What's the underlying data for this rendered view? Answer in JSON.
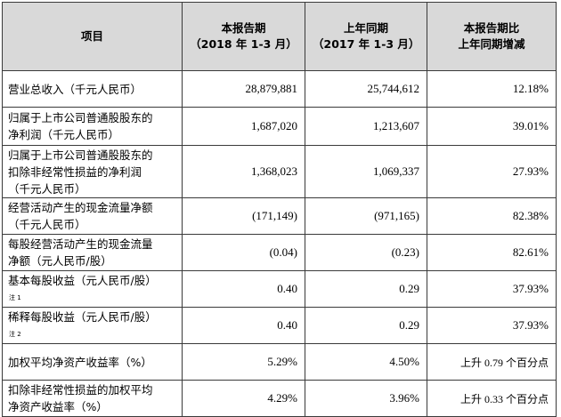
{
  "header": {
    "col_item": "项目",
    "col_current_line1": "本报告期",
    "col_current_line2": "（2018 年 1-3 月）",
    "col_prior_line1": "上年同期",
    "col_prior_line2": "（2017 年 1-3 月）",
    "col_change_line1": "本报告期比",
    "col_change_line2": "上年同期增减"
  },
  "rows": [
    {
      "label_line1": "营业总收入（千元人民币）",
      "label_line2": "",
      "label_line3": "",
      "note": "",
      "current": "28,879,881",
      "prior": "25,744,612",
      "change": "12.18%"
    },
    {
      "label_line1": "归属于上市公司普通股股东的",
      "label_line2": "净利润（千元人民币）",
      "label_line3": "",
      "note": "",
      "current": "1,687,020",
      "prior": "1,213,607",
      "change": "39.01%"
    },
    {
      "label_line1": "归属于上市公司普通股股东的",
      "label_line2": "扣除非经常性损益的净利润",
      "label_line3": "（千元人民币）",
      "note": "",
      "current": "1,368,023",
      "prior": "1,069,337",
      "change": "27.93%"
    },
    {
      "label_line1": "经营活动产生的现金流量净额",
      "label_line2": "（千元人民币）",
      "label_line3": "",
      "note": "",
      "current": "(171,149)",
      "prior": "(971,165)",
      "change": "82.38%"
    },
    {
      "label_line1": "每股经营活动产生的现金流量",
      "label_line2": "净额（元人民币/股）",
      "label_line3": "",
      "note": "",
      "current": "(0.04)",
      "prior": "(0.23)",
      "change": "82.61%"
    },
    {
      "label_line1": "基本每股收益（元人民币/股）",
      "label_line2": "",
      "label_line3": "",
      "note": "注 1",
      "current": "0.40",
      "prior": "0.29",
      "change": "37.93%"
    },
    {
      "label_line1": "稀释每股收益（元人民币/股）",
      "label_line2": "",
      "label_line3": "",
      "note": "注 2",
      "current": "0.40",
      "prior": "0.29",
      "change": "37.93%"
    },
    {
      "label_line1": "加权平均净资产收益率（%）",
      "label_line2": "",
      "label_line3": "",
      "note": "",
      "current": "5.29%",
      "prior": "4.50%",
      "change": "上升 0.79 个百分点"
    },
    {
      "label_line1": "扣除非经常性损益的加权平均",
      "label_line2": "净资产收益率（%）",
      "label_line3": "",
      "note": "",
      "current": "4.29%",
      "prior": "3.96%",
      "change": "上升 0.33 个百分点"
    }
  ]
}
